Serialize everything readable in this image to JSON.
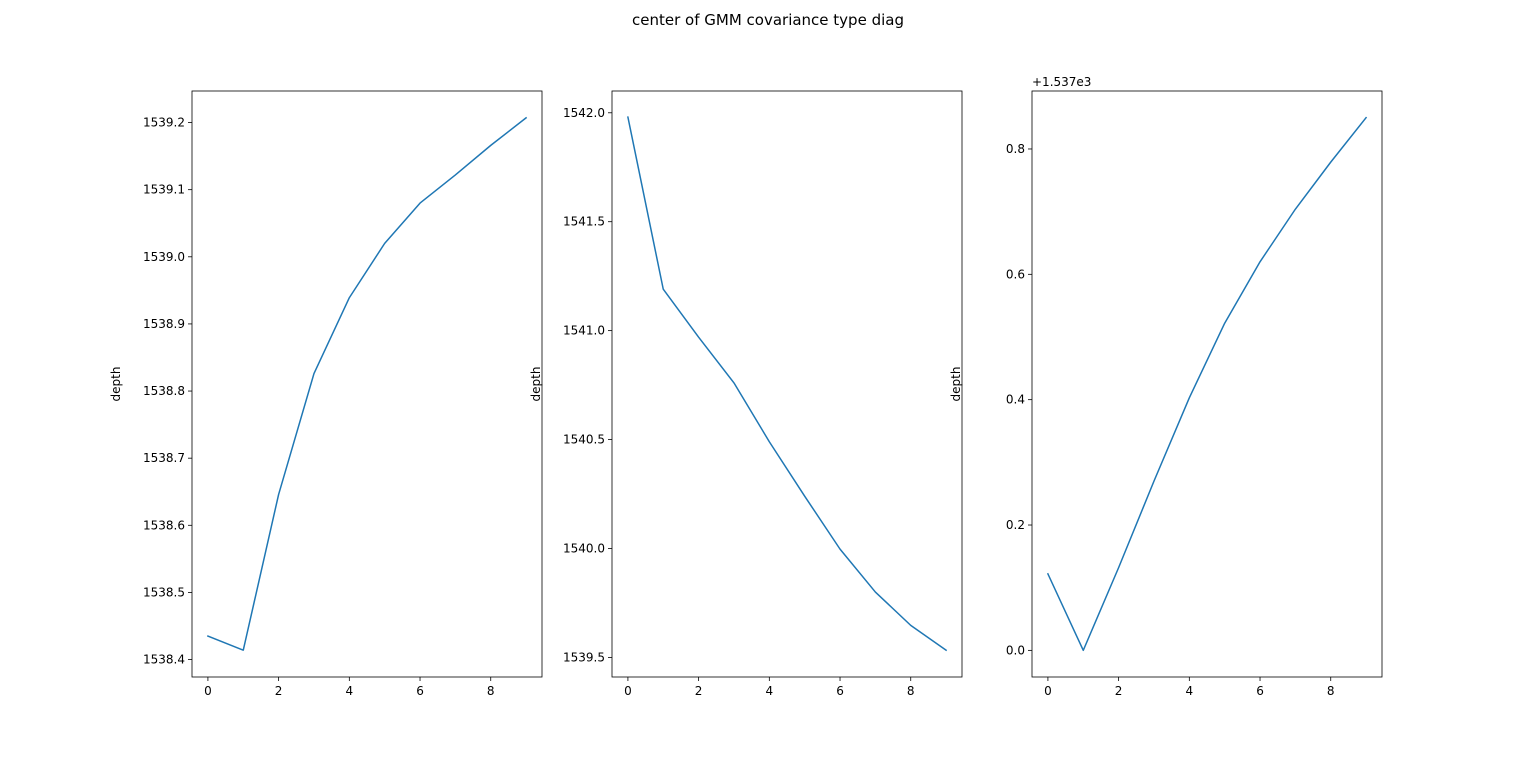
{
  "figure": {
    "title": "center of GMM covariance type diag"
  },
  "chart_data": [
    {
      "type": "line",
      "title": "",
      "xlabel": "",
      "ylabel": "depth",
      "offset_text": "",
      "x": [
        0,
        1,
        2,
        3,
        4,
        5,
        6,
        7,
        8,
        9
      ],
      "series": [
        {
          "name": "",
          "color": "#1f77b4",
          "values": [
            1538.435,
            1538.414,
            1538.646,
            1538.826,
            1538.939,
            1539.02,
            1539.08,
            1539.122,
            1539.166,
            1539.207
          ]
        }
      ],
      "xlim": [
        -0.45,
        9.45
      ],
      "ylim": [
        1538.374,
        1539.247
      ],
      "xticks": [
        0,
        2,
        4,
        6,
        8
      ],
      "xtick_labels": [
        "0",
        "2",
        "4",
        "6",
        "8"
      ],
      "yticks": [
        1538.4,
        1538.5,
        1538.6,
        1538.7,
        1538.8,
        1538.9,
        1539.0,
        1539.1,
        1539.2
      ],
      "ytick_labels": [
        "1538.4",
        "1538.5",
        "1538.6",
        "1538.7",
        "1538.8",
        "1538.9",
        "1539.0",
        "1539.1",
        "1539.2"
      ],
      "grid": false
    },
    {
      "type": "line",
      "title": "",
      "xlabel": "",
      "ylabel": "depth",
      "offset_text": "",
      "x": [
        0,
        1,
        2,
        3,
        4,
        5,
        6,
        7,
        8,
        9
      ],
      "series": [
        {
          "name": "",
          "color": "#1f77b4",
          "values": [
            1541.98,
            1541.19,
            1540.97,
            1540.76,
            1540.49,
            1540.24,
            1539.997,
            1539.8,
            1539.647,
            1539.533
          ]
        }
      ],
      "xlim": [
        -0.45,
        9.45
      ],
      "ylim": [
        1539.41,
        1542.1
      ],
      "xticks": [
        0,
        2,
        4,
        6,
        8
      ],
      "xtick_labels": [
        "0",
        "2",
        "4",
        "6",
        "8"
      ],
      "yticks": [
        1539.5,
        1540.0,
        1540.5,
        1541.0,
        1541.5,
        1542.0
      ],
      "ytick_labels": [
        "1539.5",
        "1540.0",
        "1540.5",
        "1541.0",
        "1541.5",
        "1542.0"
      ],
      "grid": false
    },
    {
      "type": "line",
      "title": "",
      "xlabel": "",
      "ylabel": "depth",
      "offset_text": "+1.537e3",
      "x": [
        0,
        1,
        2,
        3,
        4,
        5,
        6,
        7,
        8,
        9
      ],
      "series": [
        {
          "name": "",
          "color": "#1f77b4",
          "values": [
            0.122,
            0.0,
            0.132,
            0.27,
            0.403,
            0.522,
            0.62,
            0.704,
            0.779,
            0.85
          ]
        }
      ],
      "xlim": [
        -0.45,
        9.45
      ],
      "ylim": [
        -0.0425,
        0.8925
      ],
      "xticks": [
        0,
        2,
        4,
        6,
        8
      ],
      "xtick_labels": [
        "0",
        "2",
        "4",
        "6",
        "8"
      ],
      "yticks": [
        0.0,
        0.2,
        0.4,
        0.6,
        0.8
      ],
      "ytick_labels": [
        "0.0",
        "0.2",
        "0.4",
        "0.6",
        "0.8"
      ],
      "grid": false
    }
  ]
}
